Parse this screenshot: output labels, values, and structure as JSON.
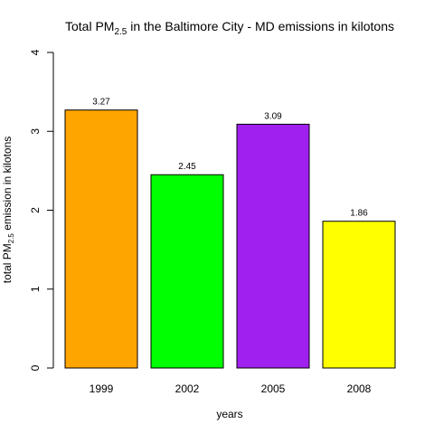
{
  "chart_data": {
    "type": "bar",
    "title": {
      "prefix": "Total PM",
      "subscript": "2.5",
      "suffix": " in the Baltimore City - MD emissions in kilotons"
    },
    "xlabel": "years",
    "ylabel": {
      "prefix": "total PM",
      "subscript": "2.5",
      "suffix": " emission in kilotons"
    },
    "categories": [
      "1999",
      "2002",
      "2005",
      "2008"
    ],
    "values": [
      3.27,
      2.45,
      3.09,
      1.86
    ],
    "data_labels": [
      "3.27",
      "2.45",
      "3.09",
      "1.86"
    ],
    "colors": [
      "#FFA500",
      "#00FF00",
      "#A020F0",
      "#FFFF00"
    ],
    "ylim": [
      0,
      4
    ],
    "yticks": [
      "0",
      "1",
      "2",
      "3",
      "4"
    ],
    "grid": false,
    "legend": "none"
  }
}
